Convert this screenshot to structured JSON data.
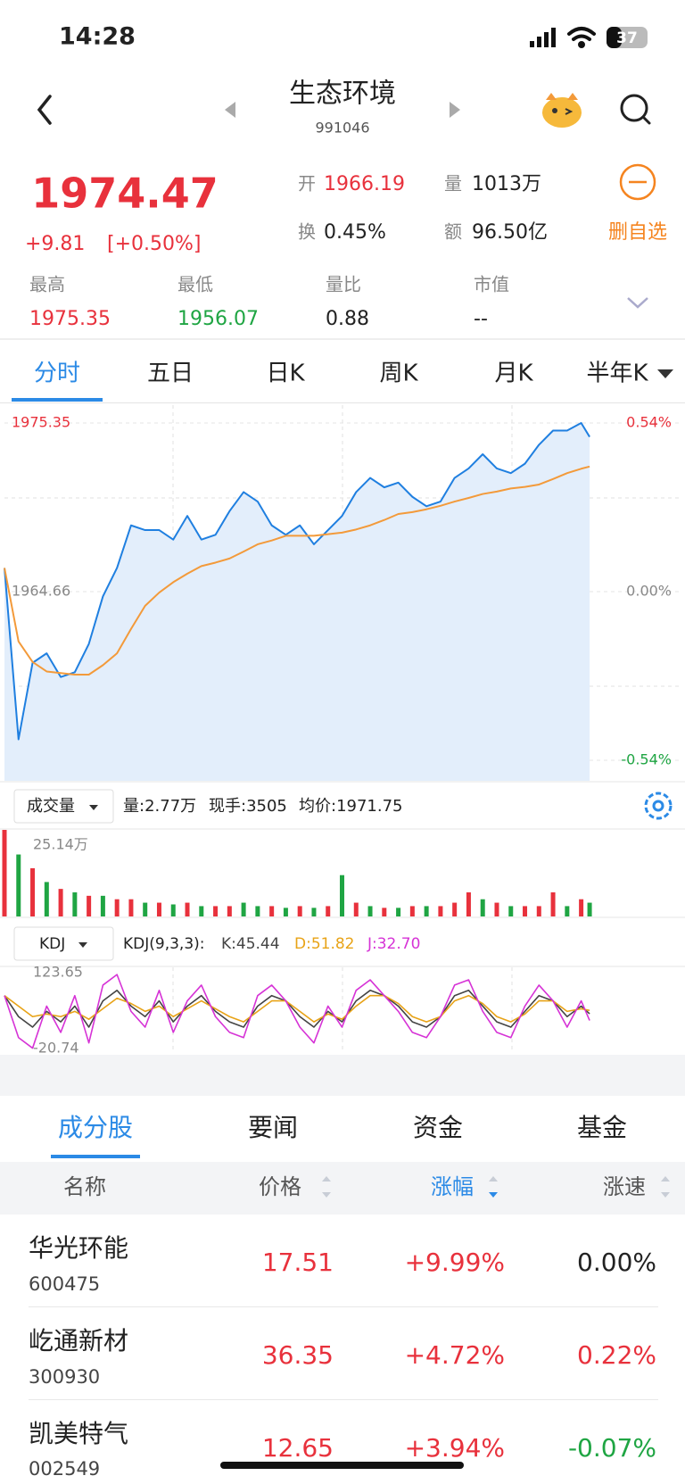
{
  "status_bar": {
    "time": "14:28",
    "battery": "37"
  },
  "header": {
    "title": "生态环境",
    "code": "991046"
  },
  "quote": {
    "price": "1974.47",
    "change": "+9.81",
    "change_pct": "[+0.50%]",
    "open_label": "开",
    "open": "1966.19",
    "volume_label": "量",
    "volume": "1013万",
    "turnover_label": "换",
    "turnover": "0.45%",
    "amount_label": "额",
    "amount": "96.50亿",
    "watch": "删自选"
  },
  "stats": [
    {
      "label": "最高",
      "value": "1975.35"
    },
    {
      "label": "最低",
      "value": "1956.07"
    },
    {
      "label": "量比",
      "value": "0.88"
    },
    {
      "label": "市值",
      "value": "--"
    }
  ],
  "tabs": [
    "分时",
    "五日",
    "日K",
    "周K",
    "月K",
    "半年K"
  ],
  "chart_data": [
    {
      "type": "line",
      "area": true,
      "grid": true,
      "xlim": [
        0,
        240
      ],
      "x": [
        0,
        5,
        10,
        15,
        20,
        25,
        30,
        35,
        40,
        45,
        50,
        55,
        60,
        65,
        70,
        75,
        80,
        85,
        90,
        95,
        100,
        105,
        110,
        115,
        120,
        125,
        130,
        135,
        140,
        145,
        150,
        155,
        160,
        165,
        170,
        175,
        180,
        185,
        190,
        195,
        200,
        205,
        208
      ],
      "ylim": [
        1953.97,
        1975.35
      ],
      "yticks": [
        1975.35,
        1964.66,
        1953.97
      ],
      "y2lim": [
        -0.54,
        0.54
      ],
      "y2ticks": [
        {
          "value": 0.54,
          "label": "0.54%"
        },
        {
          "value": 0,
          "label": "0.00%"
        },
        {
          "value": -0.54,
          "label": "-0.54%"
        }
      ],
      "series": [
        {
          "color": "#1f7fe0",
          "values": [
            1966.16,
            1955.3,
            1960.15,
            1960.75,
            1959.25,
            1959.55,
            1961.35,
            1964.36,
            1966.16,
            1968.86,
            1968.56,
            1968.56,
            1967.96,
            1969.46,
            1967.96,
            1968.26,
            1969.76,
            1970.97,
            1970.37,
            1968.86,
            1968.26,
            1968.86,
            1967.66,
            1968.56,
            1969.46,
            1970.97,
            1971.87,
            1971.27,
            1971.57,
            1970.67,
            1970.07,
            1970.37,
            1971.87,
            1972.47,
            1973.37,
            1972.47,
            1972.17,
            1972.77,
            1973.97,
            1974.87,
            1974.87,
            1975.35,
            1974.47
          ]
        },
        {
          "color": "#f39a3a",
          "values": [
            1966.16,
            1961.5,
            1960.2,
            1959.6,
            1959.5,
            1959.4,
            1959.4,
            1960.0,
            1960.75,
            1962.3,
            1963.76,
            1964.6,
            1965.26,
            1965.8,
            1966.28,
            1966.5,
            1966.76,
            1967.2,
            1967.66,
            1967.9,
            1968.2,
            1968.2,
            1968.2,
            1968.3,
            1968.4,
            1968.6,
            1968.86,
            1969.2,
            1969.58,
            1969.7,
            1969.88,
            1970.1,
            1970.37,
            1970.6,
            1970.85,
            1971.0,
            1971.2,
            1971.3,
            1971.45,
            1971.8,
            1972.17,
            1972.45,
            1972.59
          ]
        }
      ]
    },
    {
      "type": "bar",
      "selector": "成交量",
      "info": [
        "量:2.77万",
        "现手:3505",
        "均价:1971.75"
      ],
      "xlim": [
        0,
        240
      ],
      "x": [
        0,
        5,
        10,
        15,
        20,
        25,
        30,
        35,
        40,
        45,
        50,
        55,
        60,
        65,
        70,
        75,
        80,
        85,
        90,
        95,
        100,
        105,
        110,
        115,
        120,
        125,
        130,
        135,
        140,
        145,
        150,
        155,
        160,
        165,
        170,
        175,
        180,
        185,
        190,
        195,
        200,
        205,
        208
      ],
      "ylim": [
        0,
        25.14
      ],
      "yticks": [
        {
          "value": 25.14,
          "label": "25.14万"
        }
      ],
      "series": [
        {
          "color": "#e8313c",
          "values": [
            25.14,
            null,
            14,
            null,
            8,
            null,
            6,
            null,
            5,
            5,
            null,
            4,
            null,
            4,
            null,
            3,
            3,
            null,
            null,
            3,
            null,
            3,
            null,
            3,
            null,
            4,
            null,
            2.5,
            null,
            3,
            null,
            3,
            4,
            7,
            null,
            4,
            null,
            3,
            3,
            7,
            null,
            5,
            null
          ]
        },
        {
          "color": "#1fa543",
          "values": [
            null,
            18,
            null,
            10,
            null,
            7,
            null,
            6,
            null,
            null,
            4,
            null,
            3.5,
            null,
            3,
            null,
            null,
            4,
            3,
            null,
            2.5,
            null,
            2.5,
            null,
            12,
            null,
            3,
            null,
            2.5,
            null,
            3,
            null,
            null,
            null,
            5,
            null,
            3,
            null,
            null,
            null,
            3,
            null,
            4
          ]
        }
      ]
    },
    {
      "type": "line",
      "selector": "KDJ",
      "params": "KDJ(9,3,3):",
      "xlim": [
        0,
        240
      ],
      "x": [
        0,
        5,
        10,
        15,
        20,
        25,
        30,
        35,
        40,
        45,
        50,
        55,
        60,
        65,
        70,
        75,
        80,
        85,
        90,
        95,
        100,
        105,
        110,
        115,
        120,
        125,
        130,
        135,
        140,
        145,
        150,
        155,
        160,
        165,
        170,
        175,
        180,
        185,
        190,
        195,
        200,
        205,
        208
      ],
      "ylim": [
        -20.74,
        123.65
      ],
      "yticks": [
        123.65,
        -20.74
      ],
      "series": [
        {
          "name": "K:45.44",
          "color": "#444444",
          "values": [
            80,
            40,
            20,
            50,
            30,
            60,
            20,
            70,
            90,
            60,
            40,
            70,
            30,
            60,
            80,
            50,
            30,
            20,
            60,
            80,
            70,
            40,
            20,
            50,
            30,
            70,
            90,
            80,
            60,
            30,
            20,
            40,
            80,
            90,
            60,
            30,
            20,
            50,
            80,
            70,
            40,
            60,
            45.44
          ]
        },
        {
          "name": "D:51.82",
          "color": "#e8a317",
          "values": [
            80,
            60,
            40,
            45,
            40,
            50,
            35,
            55,
            75,
            65,
            50,
            60,
            40,
            55,
            70,
            55,
            40,
            30,
            50,
            70,
            70,
            50,
            30,
            45,
            35,
            60,
            80,
            80,
            65,
            40,
            30,
            40,
            70,
            80,
            65,
            40,
            30,
            45,
            70,
            70,
            50,
            55,
            51.82
          ]
        },
        {
          "name": "J:32.70",
          "color": "#d633d6",
          "values": [
            80,
            0,
            -20,
            60,
            10,
            80,
            -10,
            100,
            120,
            50,
            20,
            90,
            10,
            70,
            100,
            40,
            10,
            0,
            80,
            100,
            70,
            20,
            -10,
            60,
            20,
            90,
            110,
            80,
            50,
            10,
            0,
            40,
            100,
            110,
            50,
            10,
            0,
            60,
            100,
            70,
            20,
            70,
            32.7
          ]
        }
      ]
    }
  ],
  "bottom_tabs": [
    "成分股",
    "要闻",
    "资金",
    "基金"
  ],
  "table": {
    "columns": [
      "名称",
      "价格",
      "涨幅",
      "涨速"
    ],
    "rows": [
      [
        "华光环能",
        "600475",
        "17.51",
        "+9.99%",
        "0.00%"
      ],
      [
        "屹通新材",
        "300930",
        "36.35",
        "+4.72%",
        "0.22%"
      ],
      [
        "凯美特气",
        "002549",
        "12.65",
        "+3.94%",
        "-0.07%"
      ]
    ]
  }
}
